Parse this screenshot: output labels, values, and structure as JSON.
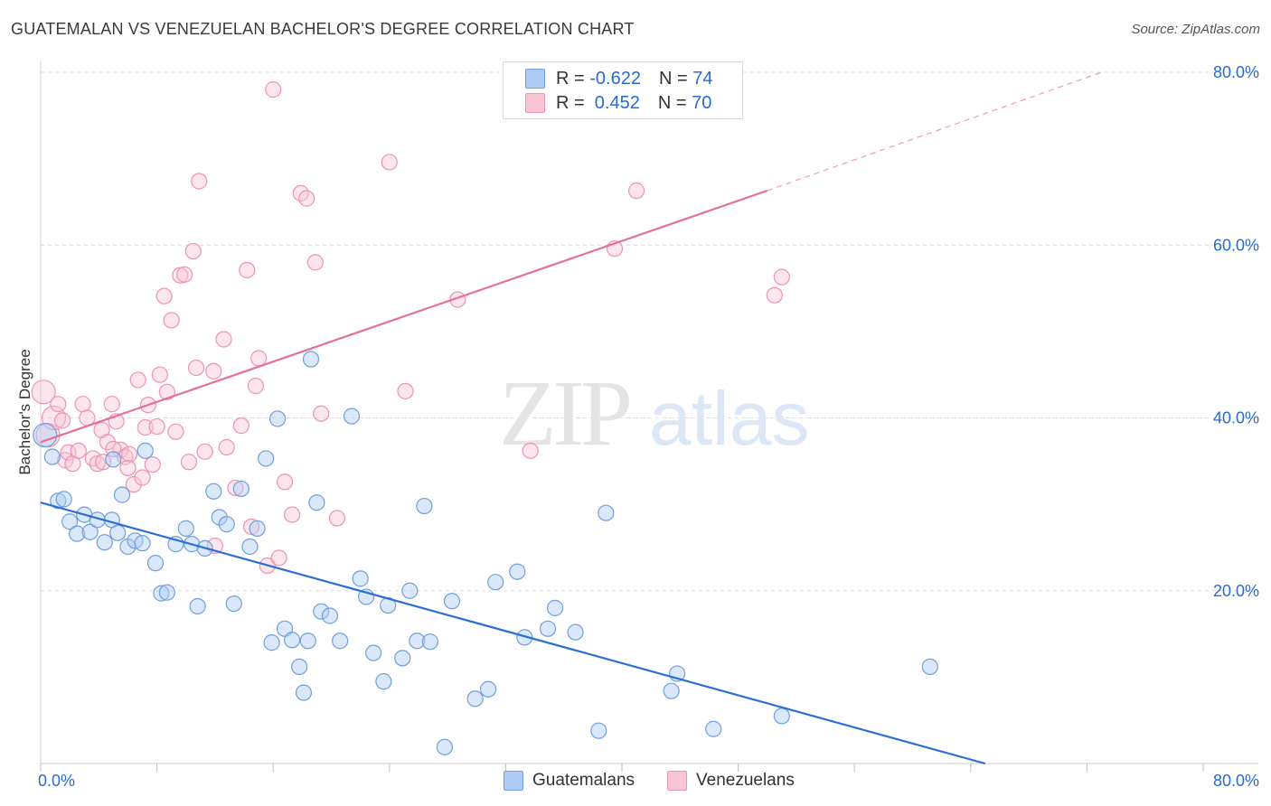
{
  "title": "GUATEMALAN VS VENEZUELAN BACHELOR'S DEGREE CORRELATION CHART",
  "source": "Source: ZipAtlas.com",
  "watermark": {
    "zip": "ZIP",
    "atlas": "atlas"
  },
  "legend": {
    "r_label": "R = ",
    "n_label": "N = ",
    "rows": [
      {
        "r": "-0.622",
        "n": "74",
        "fill": "#aecbf3",
        "stroke": "#6f9fdc"
      },
      {
        "r": " 0.452",
        "n": "70",
        "fill": "#f9c5d5",
        "stroke": "#ee93b0"
      }
    ]
  },
  "bottom_legend": [
    "Guatemalans",
    "Venezuelans"
  ],
  "chart_data": {
    "type": "scatter",
    "title": "GUATEMALAN VS VENEZUELAN BACHELOR'S DEGREE CORRELATION CHART",
    "xlabel": "",
    "ylabel": "Bachelor's Degree",
    "xlim": [
      0,
      80
    ],
    "ylim": [
      0,
      80
    ],
    "x_tick_labels": [
      "0.0%",
      "80.0%"
    ],
    "y_tick_labels": [
      "20.0%",
      "40.0%",
      "60.0%",
      "80.0%"
    ],
    "y_ticks": [
      20,
      40,
      60,
      80
    ],
    "grid": true,
    "colors": {
      "guatemalans": "#2a6fd1",
      "venezuelans": "#e4709a",
      "tick_text": "#2a6bd1"
    },
    "series": [
      {
        "name": "Guatemalans",
        "r": -0.622,
        "n": 74,
        "trend": {
          "x0": 0,
          "y0": 30.2,
          "x1": 65,
          "y1": 0
        },
        "points": [
          [
            0.3,
            38.0
          ],
          [
            0.8,
            35.5
          ],
          [
            1.2,
            30.4
          ],
          [
            1.6,
            30.6
          ],
          [
            2.0,
            28.0
          ],
          [
            2.5,
            26.6
          ],
          [
            3.0,
            28.8
          ],
          [
            3.4,
            26.8
          ],
          [
            3.9,
            28.2
          ],
          [
            4.4,
            25.6
          ],
          [
            4.9,
            28.2
          ],
          [
            5.3,
            26.7
          ],
          [
            5.6,
            31.1
          ],
          [
            6.0,
            25.1
          ],
          [
            6.5,
            25.8
          ],
          [
            7.2,
            36.2
          ],
          [
            7.9,
            23.2
          ],
          [
            8.3,
            19.7
          ],
          [
            8.7,
            19.8
          ],
          [
            9.3,
            25.4
          ],
          [
            10.0,
            27.2
          ],
          [
            10.4,
            25.4
          ],
          [
            10.8,
            18.2
          ],
          [
            11.3,
            24.9
          ],
          [
            11.9,
            31.5
          ],
          [
            12.3,
            28.5
          ],
          [
            12.8,
            27.7
          ],
          [
            13.3,
            18.5
          ],
          [
            13.8,
            31.8
          ],
          [
            14.4,
            25.1
          ],
          [
            14.9,
            27.2
          ],
          [
            15.5,
            35.3
          ],
          [
            15.9,
            14.0
          ],
          [
            16.3,
            39.9
          ],
          [
            16.8,
            15.6
          ],
          [
            17.3,
            14.3
          ],
          [
            17.8,
            11.2
          ],
          [
            18.1,
            8.2
          ],
          [
            18.4,
            14.2
          ],
          [
            19.0,
            30.2
          ],
          [
            19.3,
            17.6
          ],
          [
            19.9,
            17.1
          ],
          [
            20.6,
            14.2
          ],
          [
            21.4,
            40.2
          ],
          [
            22.0,
            21.4
          ],
          [
            22.4,
            19.3
          ],
          [
            22.9,
            12.8
          ],
          [
            23.6,
            9.5
          ],
          [
            23.9,
            18.3
          ],
          [
            24.9,
            12.2
          ],
          [
            25.4,
            20.0
          ],
          [
            25.9,
            14.2
          ],
          [
            26.4,
            29.8
          ],
          [
            26.8,
            14.1
          ],
          [
            27.8,
            1.9
          ],
          [
            28.3,
            18.8
          ],
          [
            29.9,
            7.5
          ],
          [
            30.8,
            8.6
          ],
          [
            31.3,
            21.0
          ],
          [
            32.8,
            22.2
          ],
          [
            33.3,
            14.6
          ],
          [
            34.9,
            15.6
          ],
          [
            35.4,
            18.0
          ],
          [
            36.8,
            15.2
          ],
          [
            38.4,
            3.8
          ],
          [
            38.9,
            29.0
          ],
          [
            43.4,
            8.4
          ],
          [
            43.8,
            10.4
          ],
          [
            46.3,
            4.0
          ],
          [
            51.0,
            5.5
          ],
          [
            61.2,
            11.2
          ],
          [
            5.0,
            35.2
          ],
          [
            18.6,
            46.8
          ],
          [
            7.0,
            25.5
          ]
        ]
      },
      {
        "name": "Venezuelans",
        "r": 0.452,
        "n": 70,
        "trend": {
          "x0": 0,
          "y0": 37.2,
          "x1": 50,
          "y1": 66.3,
          "dash_x1": 73,
          "dash_y1": 80.0
        },
        "points": [
          [
            0.2,
            43.0
          ],
          [
            0.5,
            38.0
          ],
          [
            0.9,
            40.0
          ],
          [
            1.2,
            41.6
          ],
          [
            1.5,
            39.7
          ],
          [
            1.7,
            35.1
          ],
          [
            1.9,
            36.0
          ],
          [
            2.2,
            34.7
          ],
          [
            2.6,
            36.2
          ],
          [
            2.9,
            41.6
          ],
          [
            3.2,
            40.0
          ],
          [
            3.6,
            35.3
          ],
          [
            3.9,
            34.7
          ],
          [
            4.2,
            38.6
          ],
          [
            4.6,
            37.2
          ],
          [
            4.9,
            41.6
          ],
          [
            5.2,
            39.6
          ],
          [
            5.5,
            36.3
          ],
          [
            5.8,
            35.5
          ],
          [
            6.1,
            35.8
          ],
          [
            6.4,
            32.3
          ],
          [
            6.7,
            44.4
          ],
          [
            7.0,
            33.1
          ],
          [
            7.2,
            38.9
          ],
          [
            7.4,
            41.5
          ],
          [
            7.7,
            34.6
          ],
          [
            8.0,
            39.0
          ],
          [
            8.2,
            45.0
          ],
          [
            8.5,
            54.1
          ],
          [
            8.7,
            43.0
          ],
          [
            9.0,
            51.3
          ],
          [
            9.3,
            38.4
          ],
          [
            9.6,
            56.5
          ],
          [
            9.9,
            56.6
          ],
          [
            10.2,
            34.9
          ],
          [
            10.5,
            59.3
          ],
          [
            10.7,
            45.8
          ],
          [
            10.9,
            67.4
          ],
          [
            11.3,
            36.1
          ],
          [
            11.9,
            45.4
          ],
          [
            12.6,
            49.1
          ],
          [
            12.8,
            36.6
          ],
          [
            13.4,
            31.9
          ],
          [
            13.8,
            39.1
          ],
          [
            14.2,
            57.1
          ],
          [
            14.5,
            27.4
          ],
          [
            14.8,
            43.7
          ],
          [
            15.0,
            46.9
          ],
          [
            15.6,
            22.9
          ],
          [
            16.0,
            78.0
          ],
          [
            16.4,
            23.8
          ],
          [
            16.8,
            32.6
          ],
          [
            17.3,
            28.8
          ],
          [
            17.9,
            66.0
          ],
          [
            18.3,
            65.4
          ],
          [
            18.9,
            58.0
          ],
          [
            19.3,
            40.5
          ],
          [
            20.4,
            28.4
          ],
          [
            24.0,
            69.6
          ],
          [
            25.1,
            43.1
          ],
          [
            28.7,
            53.7
          ],
          [
            33.7,
            36.2
          ],
          [
            39.5,
            59.6
          ],
          [
            41.0,
            66.3
          ],
          [
            50.5,
            54.2
          ],
          [
            51.0,
            56.3
          ],
          [
            5.0,
            36.4
          ],
          [
            12.0,
            25.2
          ],
          [
            4.3,
            34.9
          ],
          [
            6.0,
            34.2
          ]
        ]
      }
    ]
  }
}
